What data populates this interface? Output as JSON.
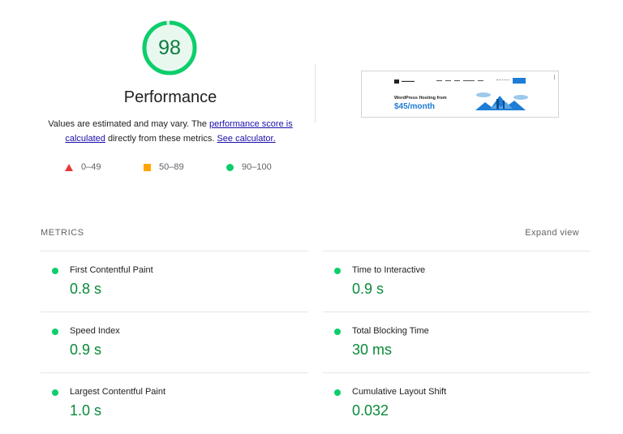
{
  "score": {
    "value": "98",
    "fraction": 0.98,
    "color": "#0cce6b",
    "text_color": "#0c7d3f",
    "title": "Performance"
  },
  "description": {
    "prefix": "Values are estimated and may vary. The ",
    "link1": "performance score is calculated",
    "middle": " directly from these metrics. ",
    "link2": "See calculator."
  },
  "legend": [
    {
      "shape": "triangle-icon",
      "color": "#e53935",
      "label": "0–49"
    },
    {
      "shape": "square-icon",
      "color": "#ffa400",
      "label": "50–89"
    },
    {
      "shape": "circle-icon",
      "color": "#0cce6b",
      "label": "90–100"
    }
  ],
  "screenshot": {
    "headline": "WordPress Hosting from",
    "price": "$45/month"
  },
  "metrics_section": {
    "heading": "METRICS",
    "expand_label": "Expand view"
  },
  "metrics": [
    {
      "label": "First Contentful Paint",
      "value": "0.8 s",
      "status": "good"
    },
    {
      "label": "Time to Interactive",
      "value": "0.9 s",
      "status": "good"
    },
    {
      "label": "Speed Index",
      "value": "0.9 s",
      "status": "good"
    },
    {
      "label": "Total Blocking Time",
      "value": "30 ms",
      "status": "good"
    },
    {
      "label": "Largest Contentful Paint",
      "value": "1.0 s",
      "status": "good"
    },
    {
      "label": "Cumulative Layout Shift",
      "value": "0.032",
      "status": "good"
    }
  ]
}
